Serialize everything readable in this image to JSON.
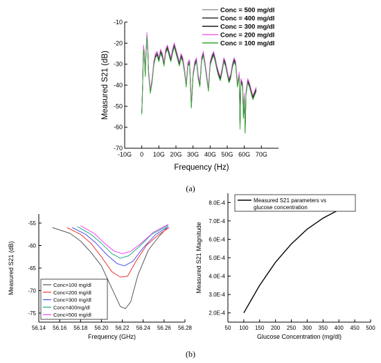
{
  "captions": {
    "a": "(a)",
    "b": "(b)"
  },
  "chart_data": [
    {
      "id": "a",
      "type": "line",
      "xlabel": "Frequency  (Hz)",
      "ylabel": "Measured S21  (dB)",
      "xlim": [
        -10,
        80
      ],
      "ylim": [
        -70,
        -10
      ],
      "xticks": [
        -10,
        0,
        10,
        20,
        30,
        40,
        50,
        60,
        70
      ],
      "xtick_labels": [
        "-10G",
        "0",
        "10G",
        "20G",
        "30G",
        "40G",
        "50G",
        "60G",
        "70G"
      ],
      "yticks": [
        -10,
        -20,
        -30,
        -40,
        -50,
        -60,
        -70
      ],
      "legend_position": "top-right",
      "base_points": [
        [
          0,
          -53
        ],
        [
          0.5,
          -40
        ],
        [
          1,
          -22
        ],
        [
          1.5,
          -25
        ],
        [
          2,
          -35
        ],
        [
          2.5,
          -25
        ],
        [
          3,
          -16
        ],
        [
          3.5,
          -22
        ],
        [
          4,
          -34
        ],
        [
          5,
          -43
        ],
        [
          6,
          -38
        ],
        [
          7,
          -30
        ],
        [
          8,
          -26
        ],
        [
          9,
          -25
        ],
        [
          10,
          -28
        ],
        [
          11,
          -24
        ],
        [
          12,
          -26
        ],
        [
          13,
          -30
        ],
        [
          14,
          -24
        ],
        [
          15,
          -22
        ],
        [
          16,
          -25
        ],
        [
          17,
          -28
        ],
        [
          18,
          -24
        ],
        [
          19,
          -21
        ],
        [
          20,
          -24
        ],
        [
          21,
          -27
        ],
        [
          22,
          -30
        ],
        [
          23,
          -26
        ],
        [
          24,
          -28
        ],
        [
          25,
          -33
        ],
        [
          26,
          -40
        ],
        [
          27,
          -30
        ],
        [
          28,
          -29
        ],
        [
          29,
          -50
        ],
        [
          30,
          -35
        ],
        [
          31,
          -30
        ],
        [
          32,
          -28
        ],
        [
          33,
          -36
        ],
        [
          34,
          -40
        ],
        [
          35,
          -28
        ],
        [
          36,
          -25
        ],
        [
          37,
          -30
        ],
        [
          38,
          -36
        ],
        [
          39,
          -42
        ],
        [
          40,
          -30
        ],
        [
          41,
          -27
        ],
        [
          42,
          -25
        ],
        [
          43,
          -28
        ],
        [
          44,
          -32
        ],
        [
          45,
          -35
        ],
        [
          46,
          -37
        ],
        [
          47,
          -33
        ],
        [
          48,
          -28
        ],
        [
          49,
          -30
        ],
        [
          50,
          -34
        ],
        [
          51,
          -38
        ],
        [
          52,
          -36
        ],
        [
          53,
          -31
        ],
        [
          54,
          -28
        ],
        [
          55,
          -30
        ],
        [
          56,
          -40
        ],
        [
          57,
          -35
        ],
        [
          57.5,
          -60
        ],
        [
          58,
          -38
        ],
        [
          59,
          -40
        ],
        [
          59.5,
          -55
        ],
        [
          60,
          -45
        ],
        [
          60.5,
          -62
        ],
        [
          61,
          -44
        ],
        [
          62,
          -38
        ],
        [
          63,
          -40
        ],
        [
          64,
          -43
        ],
        [
          65,
          -46
        ],
        [
          66,
          -44
        ],
        [
          67,
          -42
        ]
      ],
      "series": [
        {
          "name": "Conc = 500 mg/dl",
          "offset": 0,
          "color": "#999999"
        },
        {
          "name": "Conc = 400 mg/dl",
          "offset": 0.5,
          "color": "#333333"
        },
        {
          "name": "Conc = 300 mg/dl",
          "offset": -0.4,
          "color": "#1a1a1a"
        },
        {
          "name": "Conc = 200 mg/dl",
          "offset": 1.2,
          "color": "#ee66ee"
        },
        {
          "name": "Conc = 100 mg/dl",
          "offset": -0.9,
          "color": "#33aa33"
        }
      ]
    },
    {
      "id": "b1",
      "type": "line",
      "xlabel": "Frequency (GHz)",
      "ylabel": "Measured S21 (dB)",
      "xlim": [
        56.14,
        56.28
      ],
      "ylim": [
        -77,
        -53
      ],
      "xticks": [
        56.14,
        56.16,
        56.18,
        56.2,
        56.22,
        56.24,
        56.26,
        56.28
      ],
      "xtick_labels": [
        "56.14",
        "56.16",
        "56.18",
        "56.20",
        "56.22",
        "56.24",
        "56.26",
        "56.28"
      ],
      "yticks": [
        -55,
        -60,
        -65,
        -70,
        -75
      ],
      "legend_position": "bottom-left",
      "series": [
        {
          "name": "Conc=100 mg/dl",
          "color": "#555555",
          "points": [
            [
              56.153,
              -56
            ],
            [
              56.17,
              -57.3
            ],
            [
              56.18,
              -59
            ],
            [
              56.19,
              -61.5
            ],
            [
              56.2,
              -64.5
            ],
            [
              56.21,
              -69.5
            ],
            [
              56.218,
              -73.5
            ],
            [
              56.223,
              -74
            ],
            [
              56.228,
              -72.5
            ],
            [
              56.235,
              -66.5
            ],
            [
              56.245,
              -61
            ],
            [
              56.255,
              -58
            ],
            [
              56.263,
              -56
            ]
          ]
        },
        {
          "name": "Conc=200 mg/dl",
          "color": "#ee3333",
          "points": [
            [
              56.167,
              -56
            ],
            [
              56.18,
              -57.5
            ],
            [
              56.19,
              -59.5
            ],
            [
              56.2,
              -62.5
            ],
            [
              56.21,
              -65.8
            ],
            [
              56.218,
              -67
            ],
            [
              56.225,
              -66.8
            ],
            [
              56.233,
              -63.5
            ],
            [
              56.243,
              -60
            ],
            [
              56.255,
              -57.5
            ],
            [
              56.265,
              -56
            ]
          ]
        },
        {
          "name": "Conc=300 mg/dl",
          "color": "#4455ee",
          "points": [
            [
              56.172,
              -56
            ],
            [
              56.185,
              -57.5
            ],
            [
              56.195,
              -59.5
            ],
            [
              56.205,
              -62
            ],
            [
              56.215,
              -64
            ],
            [
              56.222,
              -64.5
            ],
            [
              56.23,
              -63.5
            ],
            [
              56.24,
              -60.5
            ],
            [
              56.252,
              -57.5
            ],
            [
              56.264,
              -55.8
            ]
          ]
        },
        {
          "name": "Conc=400mg/dl",
          "color": "#22aa88",
          "points": [
            [
              56.177,
              -55.8
            ],
            [
              56.19,
              -57.5
            ],
            [
              56.2,
              -59.5
            ],
            [
              56.21,
              -61.8
            ],
            [
              56.218,
              -62.8
            ],
            [
              56.226,
              -62.3
            ],
            [
              56.236,
              -60.3
            ],
            [
              56.248,
              -57.5
            ],
            [
              56.264,
              -55.5
            ]
          ]
        },
        {
          "name": "Conc=500 mg/dl",
          "color": "#ee44ee",
          "points": [
            [
              56.18,
              -55.6
            ],
            [
              56.193,
              -57.3
            ],
            [
              56.203,
              -59.5
            ],
            [
              56.212,
              -61.2
            ],
            [
              56.22,
              -61.8
            ],
            [
              56.228,
              -61.3
            ],
            [
              56.238,
              -59.5
            ],
            [
              56.25,
              -57
            ],
            [
              56.264,
              -55.3
            ]
          ]
        }
      ]
    },
    {
      "id": "b2",
      "type": "line",
      "xlabel": "Glucose Concentration (mg/dl)",
      "ylabel": "Measured S21 Magnitude",
      "xlim": [
        50,
        500
      ],
      "ylim": [
        0.00015,
        0.00085
      ],
      "xticks": [
        50,
        100,
        150,
        200,
        250,
        300,
        350,
        400,
        450,
        500
      ],
      "yticks": [
        0.0002,
        0.0003,
        0.0004,
        0.0005,
        0.0006,
        0.0007,
        0.0008
      ],
      "ytick_labels": [
        "2.0E-4",
        "3.0E-4",
        "4.0E-4",
        "5.0E-4",
        "6.0E-4",
        "7.0E-4",
        "8.0E-4"
      ],
      "legend_position": "top",
      "series": [
        {
          "name_lines": [
            "Measured S21 parameters vs",
            "glucose concentration"
          ],
          "color": "#000000",
          "points": [
            [
              100,
              0.0002
            ],
            [
              150,
              0.00035
            ],
            [
              200,
              0.000475
            ],
            [
              250,
              0.000575
            ],
            [
              300,
              0.000655
            ],
            [
              350,
              0.000715
            ],
            [
              400,
              0.00076
            ],
            [
              450,
              0.000795
            ]
          ]
        }
      ]
    }
  ]
}
